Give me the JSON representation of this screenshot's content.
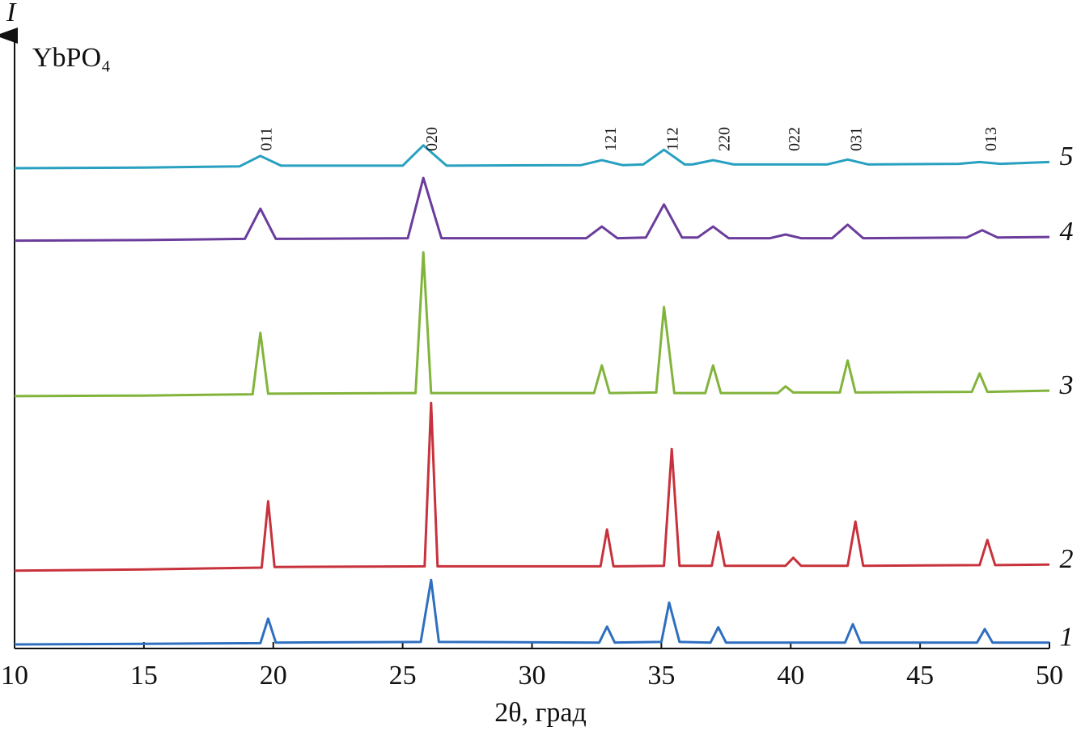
{
  "chart_data": {
    "type": "line",
    "y_label": "I",
    "x_label": "2θ, град",
    "compound": "YbPO₄",
    "xlim": [
      10,
      50
    ],
    "xticks": [
      10,
      15,
      20,
      25,
      30,
      35,
      40,
      45,
      50
    ],
    "ylim": [
      0,
      100
    ],
    "annotations": [
      {
        "text": "011",
        "x": 19.6
      },
      {
        "text": "020",
        "x": 26.0
      },
      {
        "text": "121",
        "x": 32.9
      },
      {
        "text": "112",
        "x": 35.3
      },
      {
        "text": "220",
        "x": 37.3
      },
      {
        "text": "022",
        "x": 40.0
      },
      {
        "text": "031",
        "x": 42.4
      },
      {
        "text": "013",
        "x": 47.6
      }
    ],
    "series": [
      {
        "name": "1",
        "color": "#2f6fc0",
        "x": [
          10,
          15,
          19.5,
          19.8,
          20.1,
          25.7,
          26.1,
          26.4,
          32.6,
          32.9,
          33.2,
          35.0,
          35.3,
          35.7,
          36.9,
          37.2,
          37.5,
          42.1,
          42.4,
          42.7,
          47.2,
          47.5,
          47.8,
          50
        ],
        "values": [
          0.4,
          0.5,
          0.6,
          4.6,
          0.7,
          0.8,
          10.9,
          0.8,
          0.7,
          3.3,
          0.7,
          0.8,
          7.2,
          0.8,
          0.7,
          3.2,
          0.7,
          0.7,
          3.7,
          0.7,
          0.7,
          2.9,
          0.7,
          0.7
        ]
      },
      {
        "name": "2",
        "color": "#c8323c",
        "x": [
          10,
          15,
          19.55,
          19.8,
          20.05,
          25.85,
          26.1,
          26.35,
          32.65,
          32.9,
          33.15,
          35.1,
          35.4,
          35.7,
          36.95,
          37.2,
          37.45,
          39.8,
          40.1,
          40.4,
          42.2,
          42.5,
          42.8,
          47.3,
          47.6,
          47.9,
          50
        ],
        "values": [
          12.4,
          12.6,
          12.9,
          23.7,
          13.0,
          13.1,
          39.7,
          13.1,
          13.1,
          19.1,
          13.1,
          13.2,
          32.2,
          13.2,
          13.2,
          18.7,
          13.2,
          13.2,
          14.5,
          13.2,
          13.2,
          20.4,
          13.2,
          13.3,
          17.4,
          13.3,
          13.4
        ]
      },
      {
        "name": "3",
        "color": "#82b43c",
        "x": [
          10,
          15,
          19.2,
          19.5,
          19.8,
          25.5,
          25.8,
          26.1,
          32.4,
          32.7,
          33.0,
          34.8,
          35.1,
          35.5,
          36.7,
          37.0,
          37.3,
          39.5,
          39.8,
          40.1,
          41.9,
          42.2,
          42.5,
          47.0,
          47.3,
          47.6,
          50
        ],
        "values": [
          40.8,
          40.9,
          41.1,
          51.1,
          41.2,
          41.3,
          64.2,
          41.3,
          41.3,
          45.8,
          41.3,
          41.4,
          55.3,
          41.3,
          41.3,
          45.8,
          41.3,
          41.3,
          42.4,
          41.4,
          41.4,
          46.6,
          41.4,
          41.5,
          44.5,
          41.5,
          41.7
        ]
      },
      {
        "name": "4",
        "color": "#6a3c9c",
        "x": [
          10,
          15,
          18.9,
          19.5,
          20.1,
          25.2,
          25.8,
          26.5,
          32.1,
          32.7,
          33.3,
          34.4,
          35.1,
          35.8,
          36.4,
          37.0,
          37.6,
          39.2,
          39.8,
          40.4,
          41.6,
          42.2,
          42.8,
          46.8,
          47.4,
          48.0,
          50
        ],
        "values": [
          66.1,
          66.2,
          66.4,
          71.3,
          66.4,
          66.5,
          76.3,
          66.5,
          66.5,
          68.4,
          66.5,
          66.6,
          72.0,
          66.6,
          66.6,
          68.4,
          66.5,
          66.5,
          67.1,
          66.5,
          66.5,
          68.7,
          66.5,
          66.6,
          67.8,
          66.6,
          66.7
        ]
      },
      {
        "name": "5",
        "color": "#28a0c0",
        "x": [
          10,
          15,
          18.7,
          19.5,
          20.3,
          25.0,
          25.8,
          26.7,
          31.9,
          32.7,
          33.5,
          34.3,
          35.1,
          35.9,
          36.2,
          37.0,
          37.8,
          41.4,
          42.2,
          43.0,
          46.5,
          47.3,
          48.1,
          50
        ],
        "values": [
          77.9,
          78.0,
          78.2,
          79.9,
          78.3,
          78.3,
          81.6,
          78.3,
          78.4,
          79.2,
          78.4,
          78.5,
          80.9,
          78.5,
          78.5,
          79.2,
          78.5,
          78.5,
          79.3,
          78.5,
          78.6,
          78.9,
          78.6,
          78.9
        ]
      }
    ]
  }
}
